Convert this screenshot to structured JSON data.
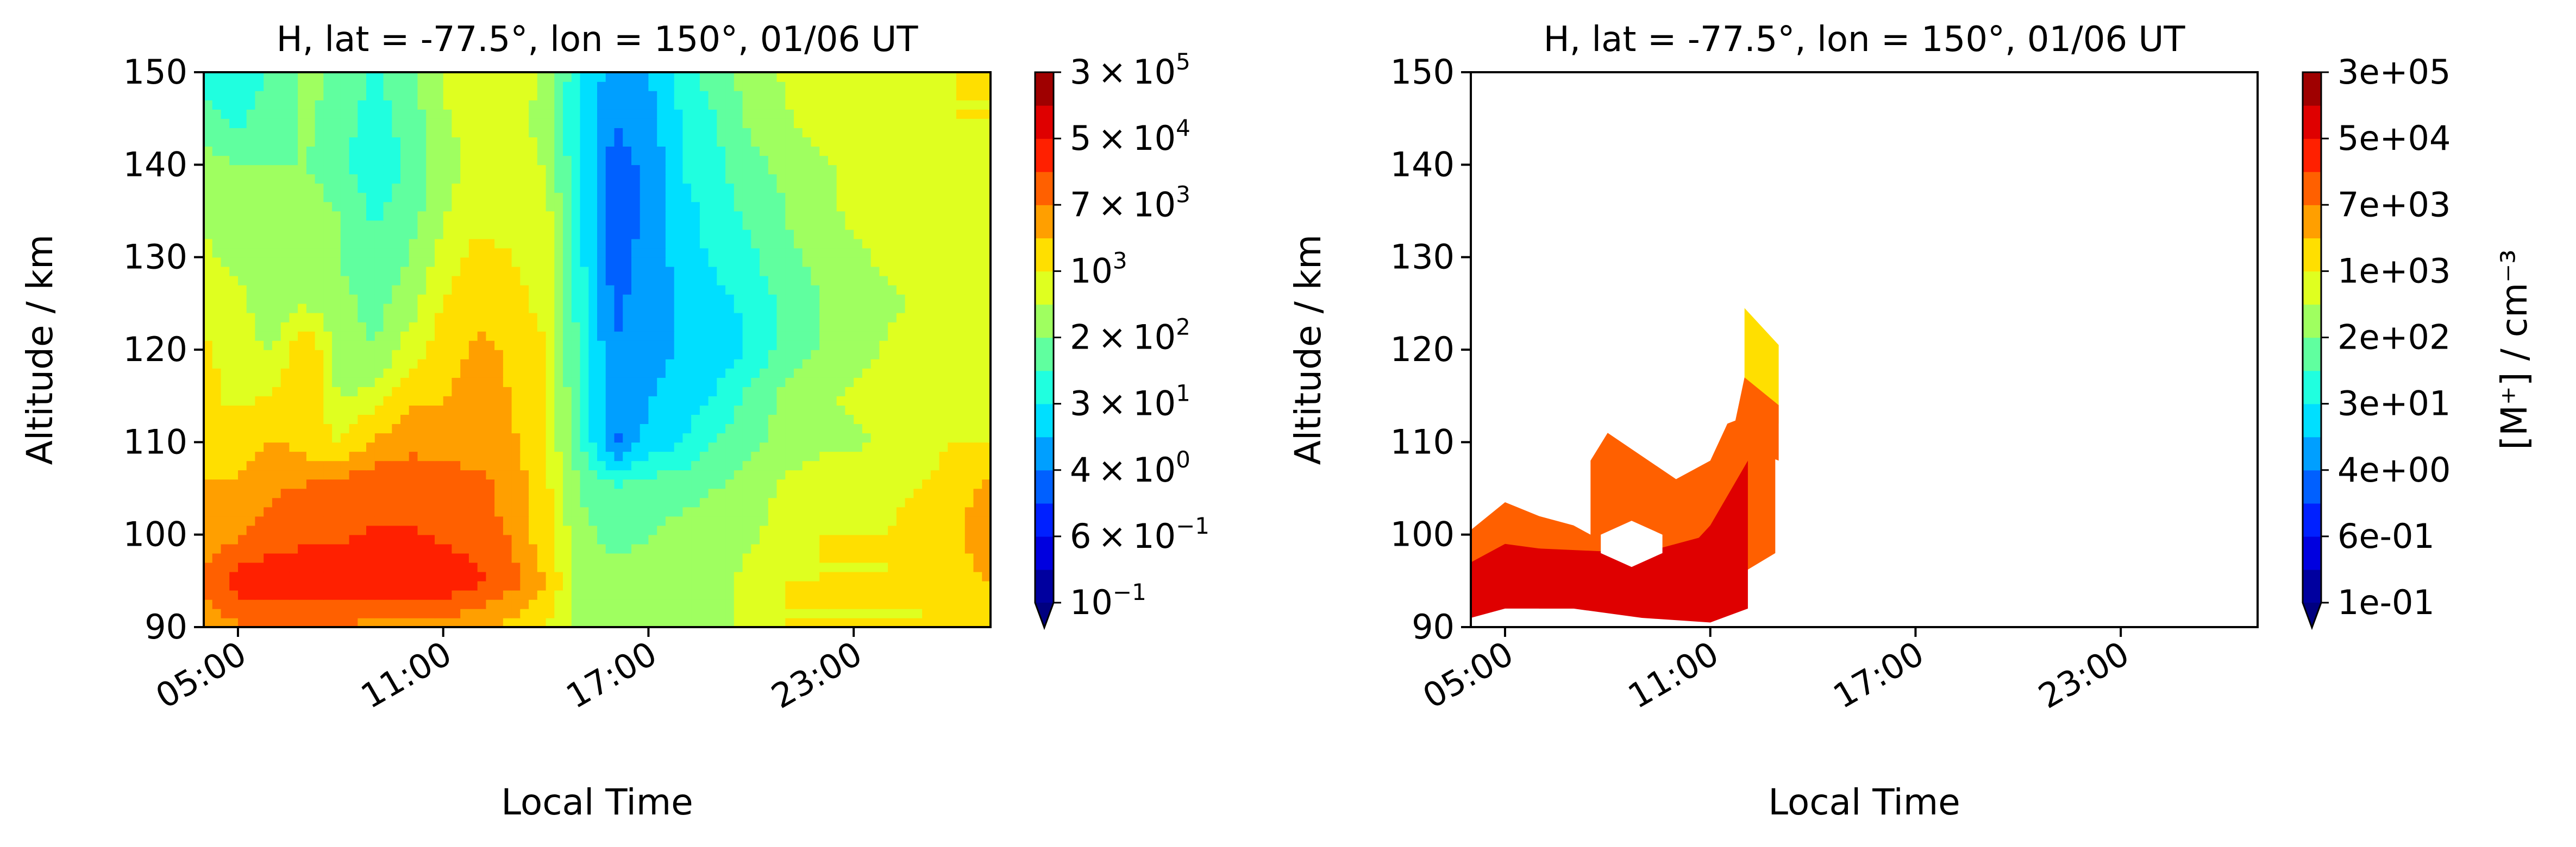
{
  "figure": {
    "panel_left": {
      "title": "H, lat = -77.5°, lon = 150°, 01/06 UT",
      "xlabel": "Local Time",
      "ylabel": "Altitude / km"
    },
    "panel_right": {
      "title": "H, lat = -77.5°, lon = 150°, 01/06 UT",
      "xlabel": "Local Time",
      "ylabel": "Altitude / km"
    },
    "colorbar_left": {
      "tick_labels": [
        {
          "mant": "3",
          "exp": "5"
        },
        {
          "mant": "5",
          "exp": "4"
        },
        {
          "mant": "7",
          "exp": "3"
        },
        {
          "mant": "",
          "exp": "3"
        },
        {
          "mant": "2",
          "exp": "2"
        },
        {
          "mant": "3",
          "exp": "1"
        },
        {
          "mant": "4",
          "exp": "0"
        },
        {
          "mant": "6",
          "exp": "−1"
        },
        {
          "mant": "",
          "exp": "−1"
        }
      ]
    },
    "colorbar_right": {
      "label": "[M⁺] / cm⁻³",
      "tick_labels": [
        "3e+05",
        "5e+04",
        "7e+03",
        "1e+03",
        "2e+02",
        "3e+01",
        "4e+00",
        "6e-01",
        "1e-01"
      ]
    }
  },
  "chart_data": [
    {
      "type": "heatmap",
      "subtype": "filled-contour",
      "title": "H, lat = -77.5°, lon = 150°, 01/06 UT",
      "xlabel": "Local Time",
      "ylabel": "Altitude / km",
      "x_tick_labels": [
        "05:00",
        "11:00",
        "17:00",
        "23:00"
      ],
      "x_ticks_hours": [
        5,
        11,
        17,
        23
      ],
      "xlim_hours": [
        4,
        27
      ],
      "y_ticks": [
        90,
        100,
        110,
        120,
        130,
        140,
        150
      ],
      "ylim": [
        90,
        150
      ],
      "colormap": "jet",
      "color_scale": "log",
      "levels": [
        0.1,
        0.6,
        4,
        30,
        200,
        1000,
        7000,
        50000,
        300000
      ],
      "extend": "min",
      "local_time_hours": [
        4,
        5,
        6,
        7,
        8,
        9,
        10,
        11,
        12,
        13,
        14,
        15,
        16,
        17,
        18,
        19,
        20,
        21,
        22,
        23,
        24,
        25,
        26,
        27
      ],
      "altitude_km": [
        90,
        95,
        100,
        105,
        110,
        115,
        120,
        125,
        130,
        135,
        140,
        145,
        150
      ],
      "log10_density": [
        [
          3.5,
          3.8,
          3.8,
          3.8,
          3.8,
          3.7,
          3.7,
          3.6,
          3.5,
          3.3,
          3.0,
          2.5,
          2.4,
          2.3,
          2.3,
          2.5,
          2.8,
          3.0,
          3.0,
          3.0,
          3.0,
          3.0,
          3.1,
          3.0
        ],
        [
          4.0,
          4.5,
          4.6,
          4.6,
          4.6,
          4.6,
          4.7,
          4.6,
          4.4,
          4.0,
          3.4,
          2.5,
          2.4,
          2.4,
          2.4,
          2.5,
          2.8,
          3.0,
          3.0,
          3.0,
          3.0,
          3.0,
          3.2,
          3.5
        ],
        [
          3.6,
          3.8,
          4.0,
          4.2,
          4.2,
          4.3,
          4.3,
          4.2,
          4.0,
          3.8,
          3.1,
          2.4,
          2.2,
          2.3,
          2.4,
          2.5,
          2.6,
          2.8,
          3.0,
          3.0,
          3.0,
          3.2,
          3.4,
          3.6
        ],
        [
          3.5,
          3.5,
          3.8,
          3.9,
          4.1,
          4.2,
          4.2,
          4.1,
          4.0,
          3.7,
          3.1,
          2.3,
          2.0,
          2.1,
          2.2,
          2.3,
          2.5,
          2.7,
          2.8,
          2.8,
          2.9,
          3.0,
          3.3,
          3.5
        ],
        [
          3.1,
          3.2,
          3.5,
          3.2,
          3.0,
          3.5,
          3.7,
          3.7,
          3.6,
          3.5,
          3.0,
          2.0,
          0.5,
          1.2,
          1.5,
          1.9,
          2.2,
          2.5,
          2.6,
          2.6,
          2.7,
          2.8,
          3.0,
          3.0
        ],
        [
          3.1,
          2.9,
          3.0,
          3.3,
          2.6,
          2.8,
          3.3,
          3.4,
          3.6,
          3.4,
          3.0,
          1.9,
          0.6,
          1.0,
          1.2,
          1.5,
          2.0,
          2.4,
          2.6,
          2.7,
          2.8,
          2.8,
          2.9,
          3.0
        ],
        [
          3.1,
          2.8,
          2.6,
          3.4,
          2.4,
          2.3,
          2.8,
          3.2,
          3.5,
          3.4,
          3.0,
          1.8,
          0.6,
          0.9,
          1.1,
          1.3,
          1.5,
          2.1,
          2.3,
          2.5,
          2.7,
          2.8,
          2.9,
          3.0
        ],
        [
          2.8,
          2.7,
          2.5,
          2.6,
          2.4,
          2.2,
          2.5,
          3.0,
          3.3,
          3.1,
          2.9,
          1.7,
          0.5,
          0.8,
          1.1,
          1.3,
          1.6,
          2.0,
          2.3,
          2.5,
          2.6,
          2.7,
          2.8,
          2.9
        ],
        [
          2.7,
          2.6,
          2.6,
          2.6,
          2.3,
          2.0,
          2.3,
          2.8,
          3.1,
          3.0,
          2.9,
          1.6,
          0.4,
          0.8,
          1.2,
          1.6,
          1.8,
          2.2,
          2.4,
          2.6,
          2.7,
          2.8,
          2.8,
          2.9
        ],
        [
          2.6,
          2.4,
          2.4,
          2.5,
          2.3,
          1.8,
          2.1,
          2.6,
          2.9,
          2.9,
          2.8,
          1.6,
          0.3,
          0.7,
          1.3,
          1.7,
          2.0,
          2.3,
          2.6,
          2.7,
          2.8,
          2.8,
          2.9,
          2.9
        ],
        [
          2.5,
          2.3,
          2.3,
          2.3,
          2.0,
          1.5,
          2.0,
          2.5,
          2.8,
          2.9,
          2.6,
          1.5,
          0.4,
          0.7,
          1.5,
          1.8,
          2.2,
          2.4,
          2.6,
          2.7,
          2.7,
          2.8,
          2.9,
          2.9
        ],
        [
          2.0,
          1.8,
          2.1,
          2.4,
          2.1,
          1.7,
          2.1,
          2.6,
          2.8,
          2.8,
          2.5,
          1.4,
          0.6,
          0.9,
          1.5,
          1.9,
          2.4,
          2.6,
          2.8,
          2.9,
          2.9,
          2.9,
          3.0,
          3.0
        ],
        [
          1.8,
          1.5,
          2.0,
          2.4,
          2.2,
          1.8,
          2.2,
          2.7,
          2.9,
          2.9,
          2.6,
          1.5,
          0.8,
          1.0,
          1.7,
          2.1,
          2.5,
          2.7,
          2.9,
          3.0,
          3.0,
          3.0,
          3.0,
          3.0
        ]
      ]
    },
    {
      "type": "heatmap",
      "subtype": "filled-contour",
      "title": "H, lat = -77.5°, lon = 150°, 01/06 UT",
      "xlabel": "Local Time",
      "ylabel": "Altitude / km",
      "x_tick_labels": [
        "05:00",
        "11:00",
        "17:00",
        "23:00"
      ],
      "x_ticks_hours": [
        5,
        11,
        17,
        23
      ],
      "xlim_hours": [
        4,
        27
      ],
      "y_ticks": [
        90,
        100,
        110,
        120,
        130,
        140,
        150
      ],
      "ylim": [
        90,
        150
      ],
      "colormap": "jet",
      "color_scale": "log",
      "levels": [
        0.1,
        0.6,
        4,
        30,
        200,
        1000,
        7000,
        50000,
        300000
      ],
      "extend": "min",
      "colorbar_label": "[M⁺] / cm⁻³",
      "note_on_blank": "areas outside the filled regions have no data",
      "filled_regions": [
        {
          "level_band": "7e+03 to 5e+04",
          "local_time_range_hours": [
            4,
            6
          ],
          "altitude_range_km": [
            95,
            103
          ]
        },
        {
          "level_band": "7e+03 to 5e+04",
          "local_time_range_hours": [
            5,
            12.9
          ],
          "altitude_range_km": [
            92,
            111
          ]
        },
        {
          "level_band": "5e+04 to 3e+05",
          "local_time_range_hours": [
            4,
            12.1
          ],
          "altitude_range_km": [
            91,
            97
          ]
        },
        {
          "level_band": "1e+03 to 7e+03",
          "local_time_range_hours": [
            12.0,
            13.0
          ],
          "altitude_range_km": [
            113,
            124
          ]
        }
      ]
    }
  ]
}
